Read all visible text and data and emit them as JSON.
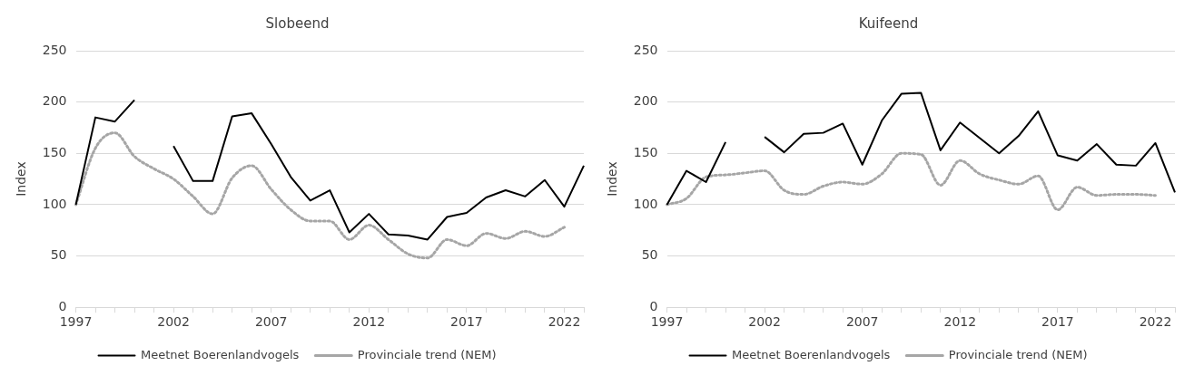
{
  "chart_data": [
    {
      "type": "line",
      "title": "Slobeend",
      "ylabel": "Index",
      "categories": [
        "1997",
        null,
        null,
        null,
        null,
        "2002",
        null,
        null,
        null,
        null,
        "2007",
        null,
        null,
        null,
        null,
        "2012",
        null,
        null,
        null,
        null,
        "2017",
        null,
        null,
        null,
        null,
        "2022",
        null
      ],
      "series": [
        {
          "name": "Meetnet Boerenlandvogels",
          "color": "#000000",
          "line_style": "solid",
          "values": [
            100,
            185,
            181,
            202,
            null,
            157,
            123,
            123,
            186,
            189,
            159,
            127,
            104,
            114,
            73,
            91,
            71,
            70,
            66,
            88,
            92,
            107,
            114,
            108,
            124,
            98,
            138
          ]
        },
        {
          "name": "Provinciale trend (NEM)",
          "color": "#a6a6a6",
          "line_style": "dotted",
          "values": [
            100,
            155,
            170,
            147,
            135,
            125,
            108,
            91,
            126,
            138,
            115,
            95,
            84,
            84,
            66,
            80,
            66,
            52,
            48,
            66,
            60,
            72,
            67,
            74,
            69,
            78,
            null
          ]
        }
      ],
      "ylim": [
        0,
        250
      ],
      "yticks": [
        0,
        50,
        100,
        150,
        200,
        250
      ],
      "grid": "y",
      "legend": "bottom",
      "marker": "none"
    },
    {
      "type": "line",
      "title": "Kuifeend",
      "ylabel": "Index",
      "categories": [
        "1997",
        null,
        null,
        null,
        null,
        "2002",
        null,
        null,
        null,
        null,
        "2007",
        null,
        null,
        null,
        null,
        "2012",
        null,
        null,
        null,
        null,
        "2017",
        null,
        null,
        null,
        null,
        "2022",
        null
      ],
      "series": [
        {
          "name": "Meetnet Boerenlandvogels",
          "color": "#000000",
          "line_style": "solid",
          "values": [
            100,
            133,
            122,
            161,
            null,
            166,
            151,
            169,
            170,
            179,
            139,
            182,
            208,
            209,
            153,
            180,
            165,
            150,
            167,
            191,
            148,
            143,
            159,
            139,
            138,
            160,
            112
          ]
        },
        {
          "name": "Provinciale trend (NEM)",
          "color": "#a6a6a6",
          "line_style": "dotted",
          "values": [
            100,
            106,
            127,
            129,
            131,
            133,
            114,
            110,
            118,
            122,
            120,
            130,
            150,
            149,
            119,
            143,
            130,
            124,
            120,
            128,
            95,
            117,
            109,
            110,
            110,
            109,
            null
          ]
        }
      ],
      "ylim": [
        0,
        250
      ],
      "yticks": [
        0,
        50,
        100,
        150,
        200,
        250
      ],
      "grid": "y",
      "legend": "bottom",
      "marker": "none"
    }
  ]
}
